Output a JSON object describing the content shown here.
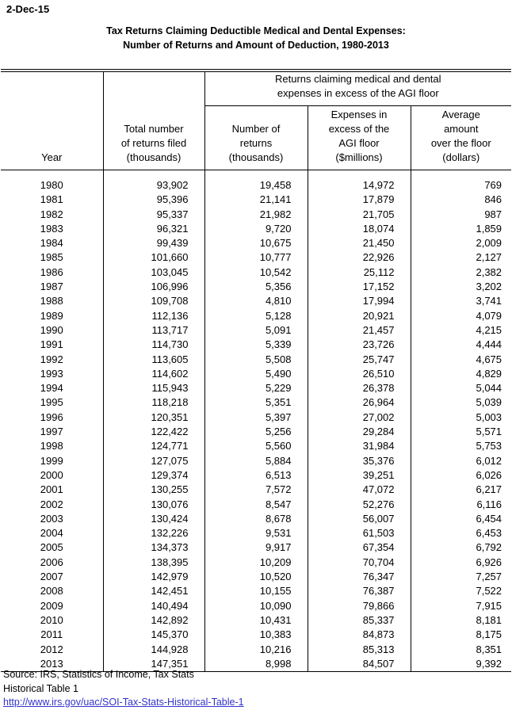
{
  "page": {
    "date_label": "2-Dec-15",
    "title": "Tax Returns Claiming Deductible Medical and Dental Expenses:\nNumber of Returns and Amount of Deduction, 1980-2013"
  },
  "table": {
    "span_header": "Returns claiming medical and dental\nexpenses in excess of the AGI floor",
    "columns": {
      "year": "Year",
      "total": "Total number\nof returns filed\n(thousands)",
      "returns": "Number of\nreturns\n(thousands)",
      "expenses": "Expenses in\nexcess of the\nAGI floor\n($millions)",
      "average": "Average\namount\nover the floor\n(dollars)"
    },
    "rows": [
      [
        "1980",
        "93,902",
        "19,458",
        "14,972",
        "769"
      ],
      [
        "1981",
        "95,396",
        "21,141",
        "17,879",
        "846"
      ],
      [
        "1982",
        "95,337",
        "21,982",
        "21,705",
        "987"
      ],
      [
        "1983",
        "96,321",
        "9,720",
        "18,074",
        "1,859"
      ],
      [
        "1984",
        "99,439",
        "10,675",
        "21,450",
        "2,009"
      ],
      [
        "1985",
        "101,660",
        "10,777",
        "22,926",
        "2,127"
      ],
      [
        "1986",
        "103,045",
        "10,542",
        "25,112",
        "2,382"
      ],
      [
        "1987",
        "106,996",
        "5,356",
        "17,152",
        "3,202"
      ],
      [
        "1988",
        "109,708",
        "4,810",
        "17,994",
        "3,741"
      ],
      [
        "1989",
        "112,136",
        "5,128",
        "20,921",
        "4,079"
      ],
      [
        "1990",
        "113,717",
        "5,091",
        "21,457",
        "4,215"
      ],
      [
        "1991",
        "114,730",
        "5,339",
        "23,726",
        "4,444"
      ],
      [
        "1992",
        "113,605",
        "5,508",
        "25,747",
        "4,675"
      ],
      [
        "1993",
        "114,602",
        "5,490",
        "26,510",
        "4,829"
      ],
      [
        "1994",
        "115,943",
        "5,229",
        "26,378",
        "5,044"
      ],
      [
        "1995",
        "118,218",
        "5,351",
        "26,964",
        "5,039"
      ],
      [
        "1996",
        "120,351",
        "5,397",
        "27,002",
        "5,003"
      ],
      [
        "1997",
        "122,422",
        "5,256",
        "29,284",
        "5,571"
      ],
      [
        "1998",
        "124,771",
        "5,560",
        "31,984",
        "5,753"
      ],
      [
        "1999",
        "127,075",
        "5,884",
        "35,376",
        "6,012"
      ],
      [
        "2000",
        "129,374",
        "6,513",
        "39,251",
        "6,026"
      ],
      [
        "2001",
        "130,255",
        "7,572",
        "47,072",
        "6,217"
      ],
      [
        "2002",
        "130,076",
        "8,547",
        "52,276",
        "6,116"
      ],
      [
        "2003",
        "130,424",
        "8,678",
        "56,007",
        "6,454"
      ],
      [
        "2004",
        "132,226",
        "9,531",
        "61,503",
        "6,453"
      ],
      [
        "2005",
        "134,373",
        "9,917",
        "67,354",
        "6,792"
      ],
      [
        "2006",
        "138,395",
        "10,209",
        "70,704",
        "6,926"
      ],
      [
        "2007",
        "142,979",
        "10,520",
        "76,347",
        "7,257"
      ],
      [
        "2008",
        "142,451",
        "10,155",
        "76,387",
        "7,522"
      ],
      [
        "2009",
        "140,494",
        "10,090",
        "79,866",
        "7,915"
      ],
      [
        "2010",
        "142,892",
        "10,431",
        "85,337",
        "8,181"
      ],
      [
        "2011",
        "145,370",
        "10,383",
        "84,873",
        "8,175"
      ],
      [
        "2012",
        "144,928",
        "10,216",
        "85,313",
        "8,351"
      ],
      [
        "2013",
        "147,351",
        "8,998",
        "84,507",
        "9,392"
      ]
    ]
  },
  "footer": {
    "source_line": "Source: IRS, Statistics of Income, Tax Stats",
    "table_ref": "Historical Table 1",
    "link": "http://www.irs.gov/uac/SOI-Tax-Stats-Historical-Table-1"
  },
  "colors": {
    "text": "#000000",
    "link": "#3333cc",
    "border": "#000000"
  }
}
